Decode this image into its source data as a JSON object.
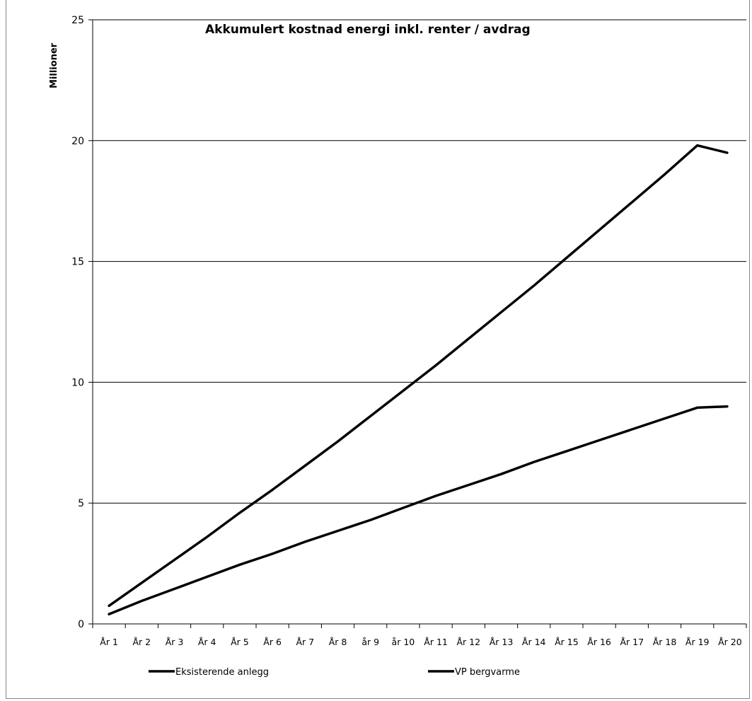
{
  "chart_data": {
    "type": "line",
    "title": "Akkumulert kostnad  energi  inkl. renter / avdrag",
    "ylabel": "Millioner",
    "xlabel": "",
    "ylim": [
      0,
      25
    ],
    "yticks": [
      "0",
      "5",
      "10",
      "15",
      "20",
      "25"
    ],
    "grid": "horizontal",
    "legend_position": "bottom",
    "categories": [
      "År 1",
      "År 2",
      "År 3",
      "År 4",
      "År 5",
      "År 6",
      "År 7",
      "År 8",
      "år 9",
      "år 10",
      "År 11",
      "År 12",
      "År 13",
      "År 14",
      "År 15",
      "År 16",
      "År 17",
      "År 18",
      "År 19",
      "År 20"
    ],
    "series": [
      {
        "name": "Eksisterende anlegg",
        "color": "#000000",
        "values": [
          0.75,
          1.7,
          2.65,
          3.6,
          4.6,
          5.55,
          6.55,
          7.55,
          8.6,
          9.65,
          10.7,
          11.8,
          12.9,
          14.0,
          15.15,
          16.3,
          17.45,
          18.6,
          19.8,
          19.5
        ]
      },
      {
        "name": "VP bergvarme",
        "color": "#000000",
        "values": [
          0.4,
          0.95,
          1.45,
          1.95,
          2.45,
          2.9,
          3.4,
          3.85,
          4.3,
          4.8,
          5.3,
          5.75,
          6.2,
          6.7,
          7.15,
          7.6,
          8.05,
          8.5,
          8.95,
          9.0
        ]
      }
    ]
  }
}
